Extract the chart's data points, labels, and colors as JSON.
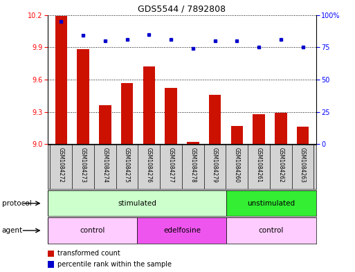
{
  "title": "GDS5544 / 7892808",
  "samples": [
    "GSM1084272",
    "GSM1084273",
    "GSM1084274",
    "GSM1084275",
    "GSM1084276",
    "GSM1084277",
    "GSM1084278",
    "GSM1084279",
    "GSM1084260",
    "GSM1084261",
    "GSM1084262",
    "GSM1084263"
  ],
  "transformed_count": [
    10.19,
    9.88,
    9.36,
    9.57,
    9.72,
    9.52,
    9.02,
    9.46,
    9.17,
    9.28,
    9.29,
    9.16
  ],
  "percentile_rank": [
    95,
    84,
    80,
    81,
    85,
    81,
    74,
    80,
    80,
    75,
    81,
    75
  ],
  "ylim_left": [
    9.0,
    10.2
  ],
  "ylim_right": [
    0,
    100
  ],
  "yticks_left": [
    9.0,
    9.3,
    9.6,
    9.9,
    10.2
  ],
  "yticks_right": [
    0,
    25,
    50,
    75,
    100
  ],
  "ytick_right_labels": [
    "0",
    "25",
    "50",
    "75",
    "100%"
  ],
  "bar_color": "#CC1100",
  "dot_color": "#0000CC",
  "grid_color": "#000000",
  "protocol_groups": [
    {
      "label": "stimulated",
      "start": 0,
      "end": 8,
      "color": "#CCFFCC"
    },
    {
      "label": "unstimulated",
      "start": 8,
      "end": 12,
      "color": "#33EE33"
    }
  ],
  "agent_groups": [
    {
      "label": "control",
      "start": 0,
      "end": 4,
      "color": "#FFCCFF"
    },
    {
      "label": "edelfosine",
      "start": 4,
      "end": 8,
      "color": "#EE55EE"
    },
    {
      "label": "control",
      "start": 8,
      "end": 12,
      "color": "#FFCCFF"
    }
  ],
  "legend_bar_label": "transformed count",
  "legend_dot_label": "percentile rank within the sample",
  "protocol_label": "protocol",
  "agent_label": "agent",
  "bg_color": "#FFFFFF",
  "sample_bg_color": "#D3D3D3"
}
